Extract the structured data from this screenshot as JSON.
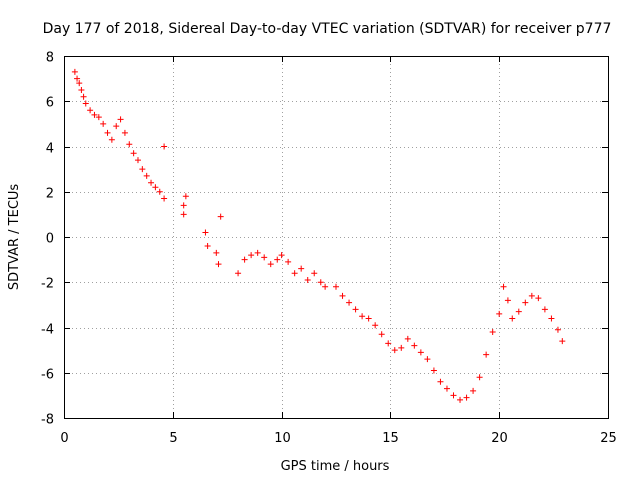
{
  "chart_data": {
    "type": "scatter",
    "title": "Day 177 of 2018, Sidereal Day-to-day VTEC variation (SDTVAR) for receiver p777",
    "xlabel": "GPS time / hours",
    "ylabel": "SDTVAR / TECUs",
    "xlim": [
      0,
      25
    ],
    "ylim": [
      -8,
      8
    ],
    "xticks": [
      0,
      5,
      10,
      15,
      20,
      25
    ],
    "yticks": [
      -8,
      -6,
      -4,
      -2,
      0,
      2,
      4,
      6,
      8
    ],
    "xtick_labels": [
      "0",
      "5",
      "10",
      "15",
      "20",
      "25"
    ],
    "ytick_labels": [
      "-8",
      "-6",
      "-4",
      "-2",
      "0",
      "2",
      "4",
      "6",
      "8"
    ],
    "grid": true,
    "marker": "+",
    "color": "#ff0000",
    "series": [
      {
        "name": "SDTVAR",
        "x": [
          0.5,
          0.6,
          0.7,
          0.8,
          0.9,
          1.0,
          1.2,
          1.4,
          1.6,
          1.8,
          2.0,
          2.2,
          2.4,
          2.6,
          2.8,
          3.0,
          3.2,
          3.4,
          3.6,
          3.8,
          4.0,
          4.2,
          4.4,
          4.6,
          4.6,
          5.5,
          5.5,
          5.6,
          6.5,
          6.6,
          7.0,
          7.1,
          7.2,
          8.0,
          8.3,
          8.6,
          8.9,
          9.2,
          9.5,
          9.8,
          10.0,
          10.3,
          10.6,
          10.9,
          11.2,
          11.5,
          11.8,
          12.0,
          12.5,
          12.8,
          13.1,
          13.4,
          13.7,
          14.0,
          14.3,
          14.6,
          14.9,
          15.2,
          15.5,
          15.8,
          16.1,
          16.4,
          16.7,
          17.0,
          17.3,
          17.6,
          17.9,
          18.2,
          18.5,
          18.8,
          19.1,
          19.4,
          19.7,
          20.0,
          20.2,
          20.4,
          20.6,
          20.9,
          21.2,
          21.5,
          21.8,
          22.1,
          22.4,
          22.7,
          22.9
        ],
        "y": [
          7.3,
          7.0,
          6.8,
          6.5,
          6.2,
          5.9,
          5.6,
          5.4,
          5.3,
          5.0,
          4.6,
          4.3,
          4.9,
          5.2,
          4.6,
          4.1,
          3.7,
          3.4,
          3.0,
          2.7,
          2.4,
          2.2,
          2.0,
          1.7,
          4.0,
          1.4,
          1.0,
          1.8,
          0.2,
          -0.4,
          -0.7,
          -1.2,
          0.9,
          -1.6,
          -1.0,
          -0.8,
          -0.7,
          -0.9,
          -1.2,
          -1.0,
          -0.8,
          -1.1,
          -1.6,
          -1.4,
          -1.9,
          -1.6,
          -2.0,
          -2.2,
          -2.2,
          -2.6,
          -2.9,
          -3.2,
          -3.5,
          -3.6,
          -3.9,
          -4.3,
          -4.7,
          -5.0,
          -4.9,
          -4.5,
          -4.8,
          -5.1,
          -5.4,
          -5.9,
          -6.4,
          -6.7,
          -7.0,
          -7.2,
          -7.1,
          -6.8,
          -6.2,
          -5.2,
          -4.2,
          -3.4,
          -2.2,
          -2.8,
          -3.6,
          -3.3,
          -2.9,
          -2.6,
          -2.7,
          -3.2,
          -3.6,
          -4.1,
          -4.6
        ]
      }
    ]
  }
}
